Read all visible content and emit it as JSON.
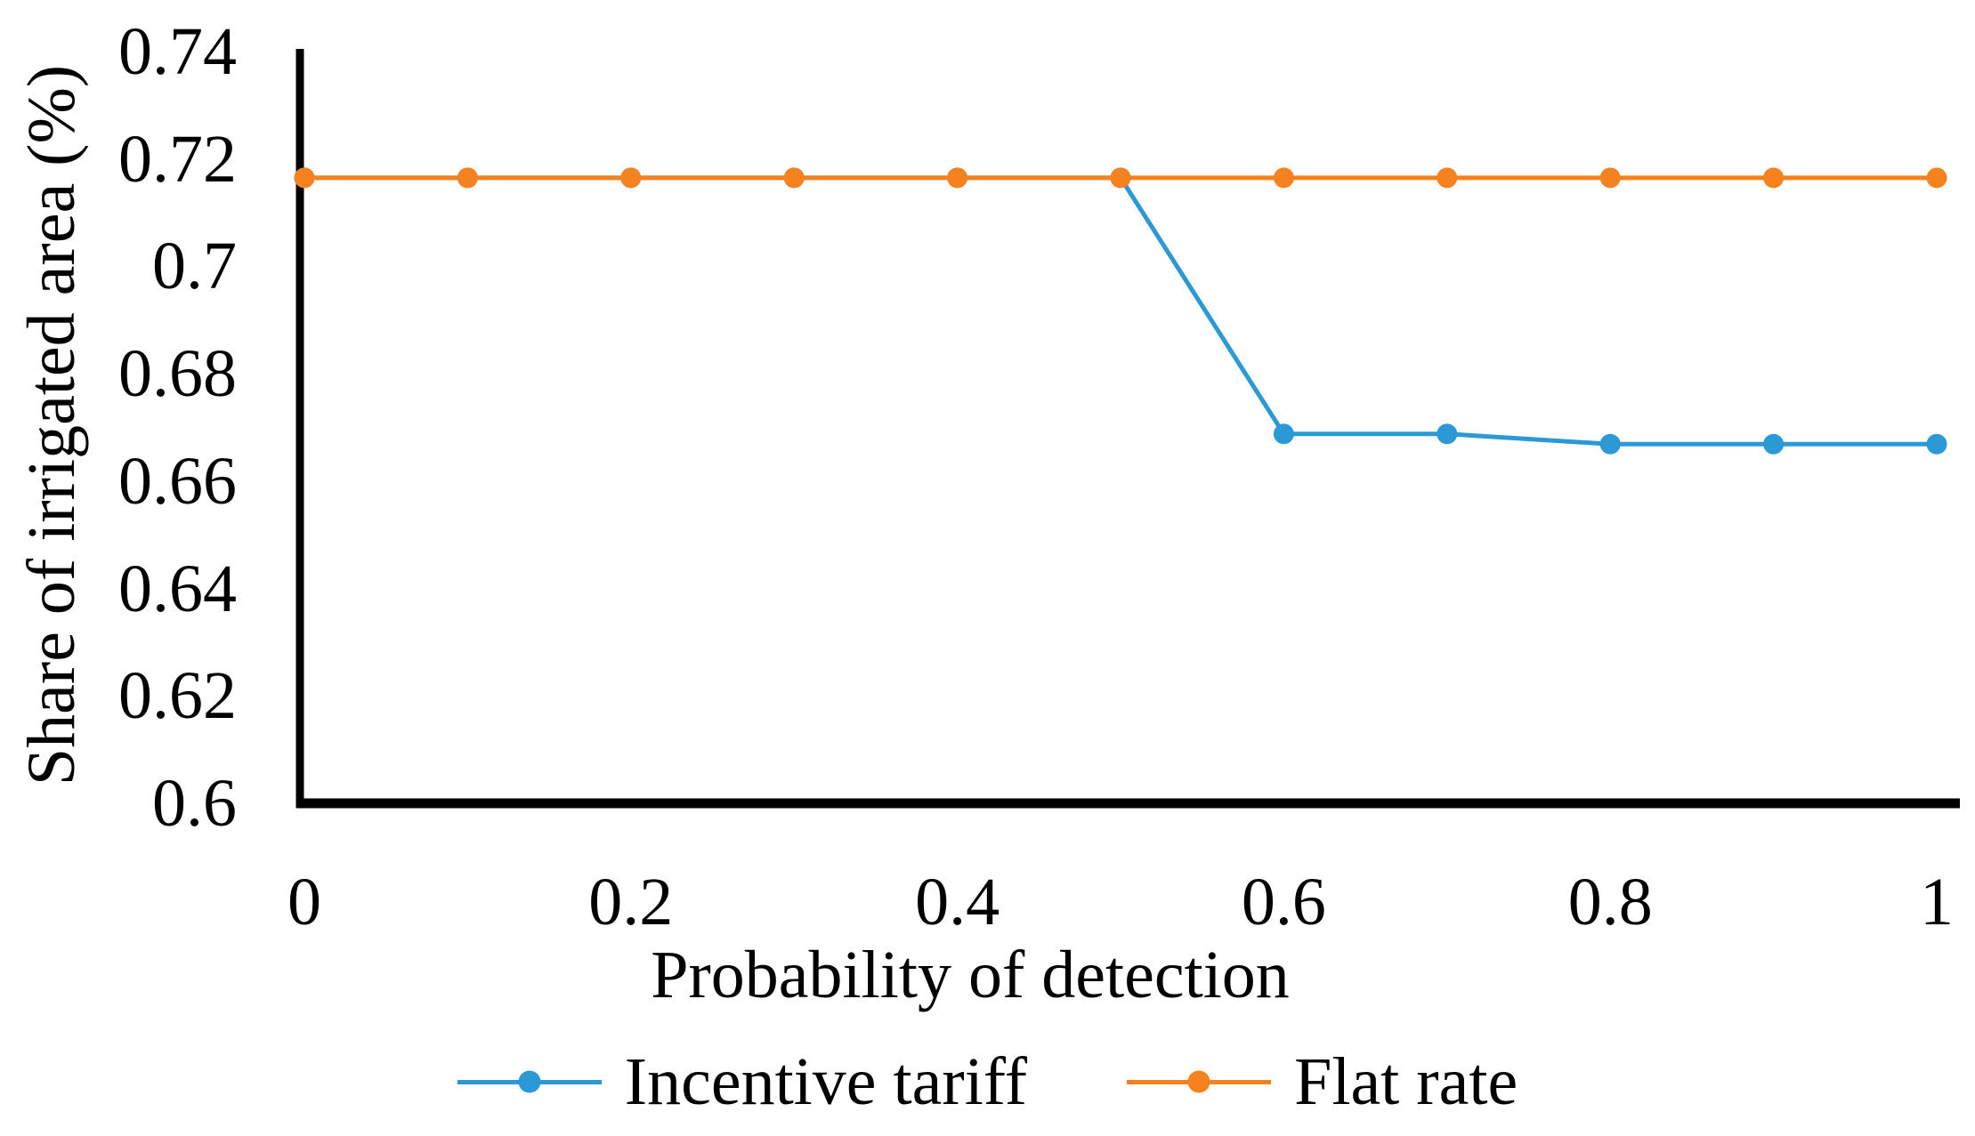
{
  "chart_data": {
    "type": "line",
    "title": "",
    "xlabel": "Probability of detection",
    "ylabel": "Share of irrigated area (%)",
    "xlim": [
      0,
      1
    ],
    "ylim": [
      0.6,
      0.74
    ],
    "grid": false,
    "legend_position": "bottom",
    "axis_color": "#000000",
    "background_color": "#ffffff",
    "x": [
      0,
      0.1,
      0.2,
      0.3,
      0.4,
      0.5,
      0.6,
      0.7,
      0.8,
      0.9,
      1
    ],
    "series": [
      {
        "name": "Incentive tariff",
        "color": "#2B99D6",
        "marker": "circle",
        "values": [
          0.7165,
          0.7165,
          0.7165,
          0.7165,
          0.7165,
          0.7165,
          0.6688,
          0.6688,
          0.6669,
          0.6669,
          0.6669
        ]
      },
      {
        "name": "Flat rate",
        "color": "#F5821F",
        "marker": "circle",
        "values": [
          0.7165,
          0.7165,
          0.7165,
          0.7165,
          0.7165,
          0.7165,
          0.7165,
          0.7165,
          0.7165,
          0.7165,
          0.7165
        ]
      }
    ],
    "x_ticks": [
      0,
      0.2,
      0.4,
      0.6,
      0.8,
      1
    ],
    "x_tick_labels": [
      "0",
      "0.2",
      "0.4",
      "0.6",
      "0.8",
      "1"
    ],
    "y_ticks": [
      0.6,
      0.62,
      0.64,
      0.66,
      0.68,
      0.7,
      0.72,
      0.74
    ],
    "y_tick_labels": [
      "0.6",
      "0.62",
      "0.64",
      "0.66",
      "0.68",
      "0.7",
      "0.72",
      "0.74"
    ]
  }
}
